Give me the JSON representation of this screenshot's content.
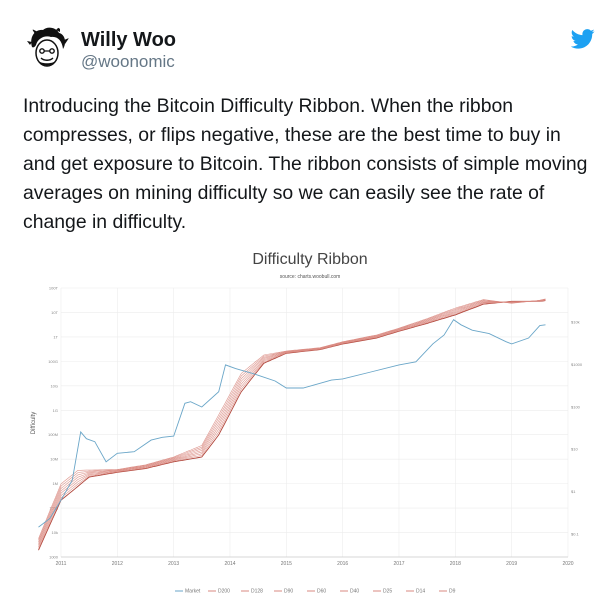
{
  "user": {
    "name": "Willy Woo",
    "handle": "@woonomic"
  },
  "tweet": {
    "text": "Introducing the Bitcoin Difficulty Ribbon. When the ribbon compresses, or flips negative, these are the best time to buy in and get exposure to Bitcoin. The ribbon consists of simple moving averages on mining difficulty so we can easily see the rate of change in difficulty."
  },
  "icons": {
    "brand": "twitter-bird-icon",
    "avatar": "avatar-illustration"
  },
  "colors": {
    "twitter_blue": "#1da1f2",
    "market": "#6aa6c8",
    "ribbon": "#c0392b"
  },
  "chart_data": {
    "type": "line",
    "title": "Difficulty Ribbon",
    "subtitle": "source: charts.woobull.com",
    "ylabel": "Difficulty",
    "x_ticks": [
      "2011",
      "2012",
      "2013",
      "2014",
      "2015",
      "2016",
      "2017",
      "2018",
      "2019",
      "2020"
    ],
    "y_ticks": [
      "100T",
      "10T",
      "1T",
      "100G",
      "10G",
      "1G",
      "100M",
      "10M",
      "1M",
      "100k",
      "10k",
      "1000"
    ],
    "y2_ticks": [
      "$10k",
      "$1000",
      "$100",
      "$10",
      "$1",
      "$0.1"
    ],
    "legend_placement": "bottom",
    "legend": [
      "Market",
      "D200",
      "D128",
      "D90",
      "D60",
      "D40",
      "D25",
      "D14",
      "D9"
    ],
    "series": [
      {
        "name": "Market",
        "x": [
          2010.6,
          2010.8,
          2011.0,
          2011.2,
          2011.35,
          2011.45,
          2011.6,
          2011.8,
          2012.0,
          2012.3,
          2012.6,
          2012.8,
          2013.0,
          2013.2,
          2013.3,
          2013.5,
          2013.8,
          2013.92,
          2014.1,
          2014.4,
          2014.8,
          2015.0,
          2015.3,
          2015.8,
          2016.0,
          2016.5,
          2017.0,
          2017.3,
          2017.6,
          2017.8,
          2017.97,
          2018.1,
          2018.3,
          2018.6,
          2018.9,
          2019.0,
          2019.3,
          2019.5,
          2019.6
        ],
        "y": [
          0.06,
          0.1,
          0.3,
          1,
          18,
          12,
          10,
          3,
          5,
          5.5,
          11,
          13,
          14,
          100,
          110,
          80,
          200,
          1000,
          800,
          600,
          380,
          250,
          250,
          400,
          430,
          650,
          1000,
          1200,
          3500,
          6000,
          15000,
          11000,
          8000,
          6500,
          4000,
          3500,
          5000,
          10500,
          11000
        ]
      },
      {
        "name": "D200",
        "x": [
          2010.6,
          2011.0,
          2011.5,
          2012.0,
          2012.5,
          2013.0,
          2013.5,
          2013.8,
          2014.2,
          2014.6,
          2015.0,
          2015.6,
          2016.0,
          2016.6,
          2017.0,
          2017.5,
          2018.0,
          2018.5,
          2019.0,
          2019.5,
          2019.6
        ],
        "y": [
          0.015,
          0.3,
          1.2,
          1.6,
          2,
          3,
          4,
          15,
          200,
          1100,
          2000,
          2500,
          3500,
          5000,
          7500,
          12000,
          20000,
          38000,
          45000,
          45000,
          47000
        ]
      },
      {
        "name": "D9",
        "x": [
          2010.6,
          2011.0,
          2011.3,
          2012.0,
          2012.5,
          2013.0,
          2013.5,
          2013.8,
          2014.2,
          2014.6,
          2015.0,
          2015.6,
          2016.0,
          2016.6,
          2017.0,
          2017.5,
          2018.0,
          2018.5,
          2019.0,
          2019.5,
          2019.6
        ],
        "y": [
          0.03,
          0.8,
          1.8,
          1.9,
          2.5,
          4,
          8,
          50,
          600,
          1800,
          2300,
          2800,
          4000,
          6000,
          9000,
          16000,
          30000,
          50000,
          40000,
          48000,
          52000
        ]
      }
    ]
  }
}
